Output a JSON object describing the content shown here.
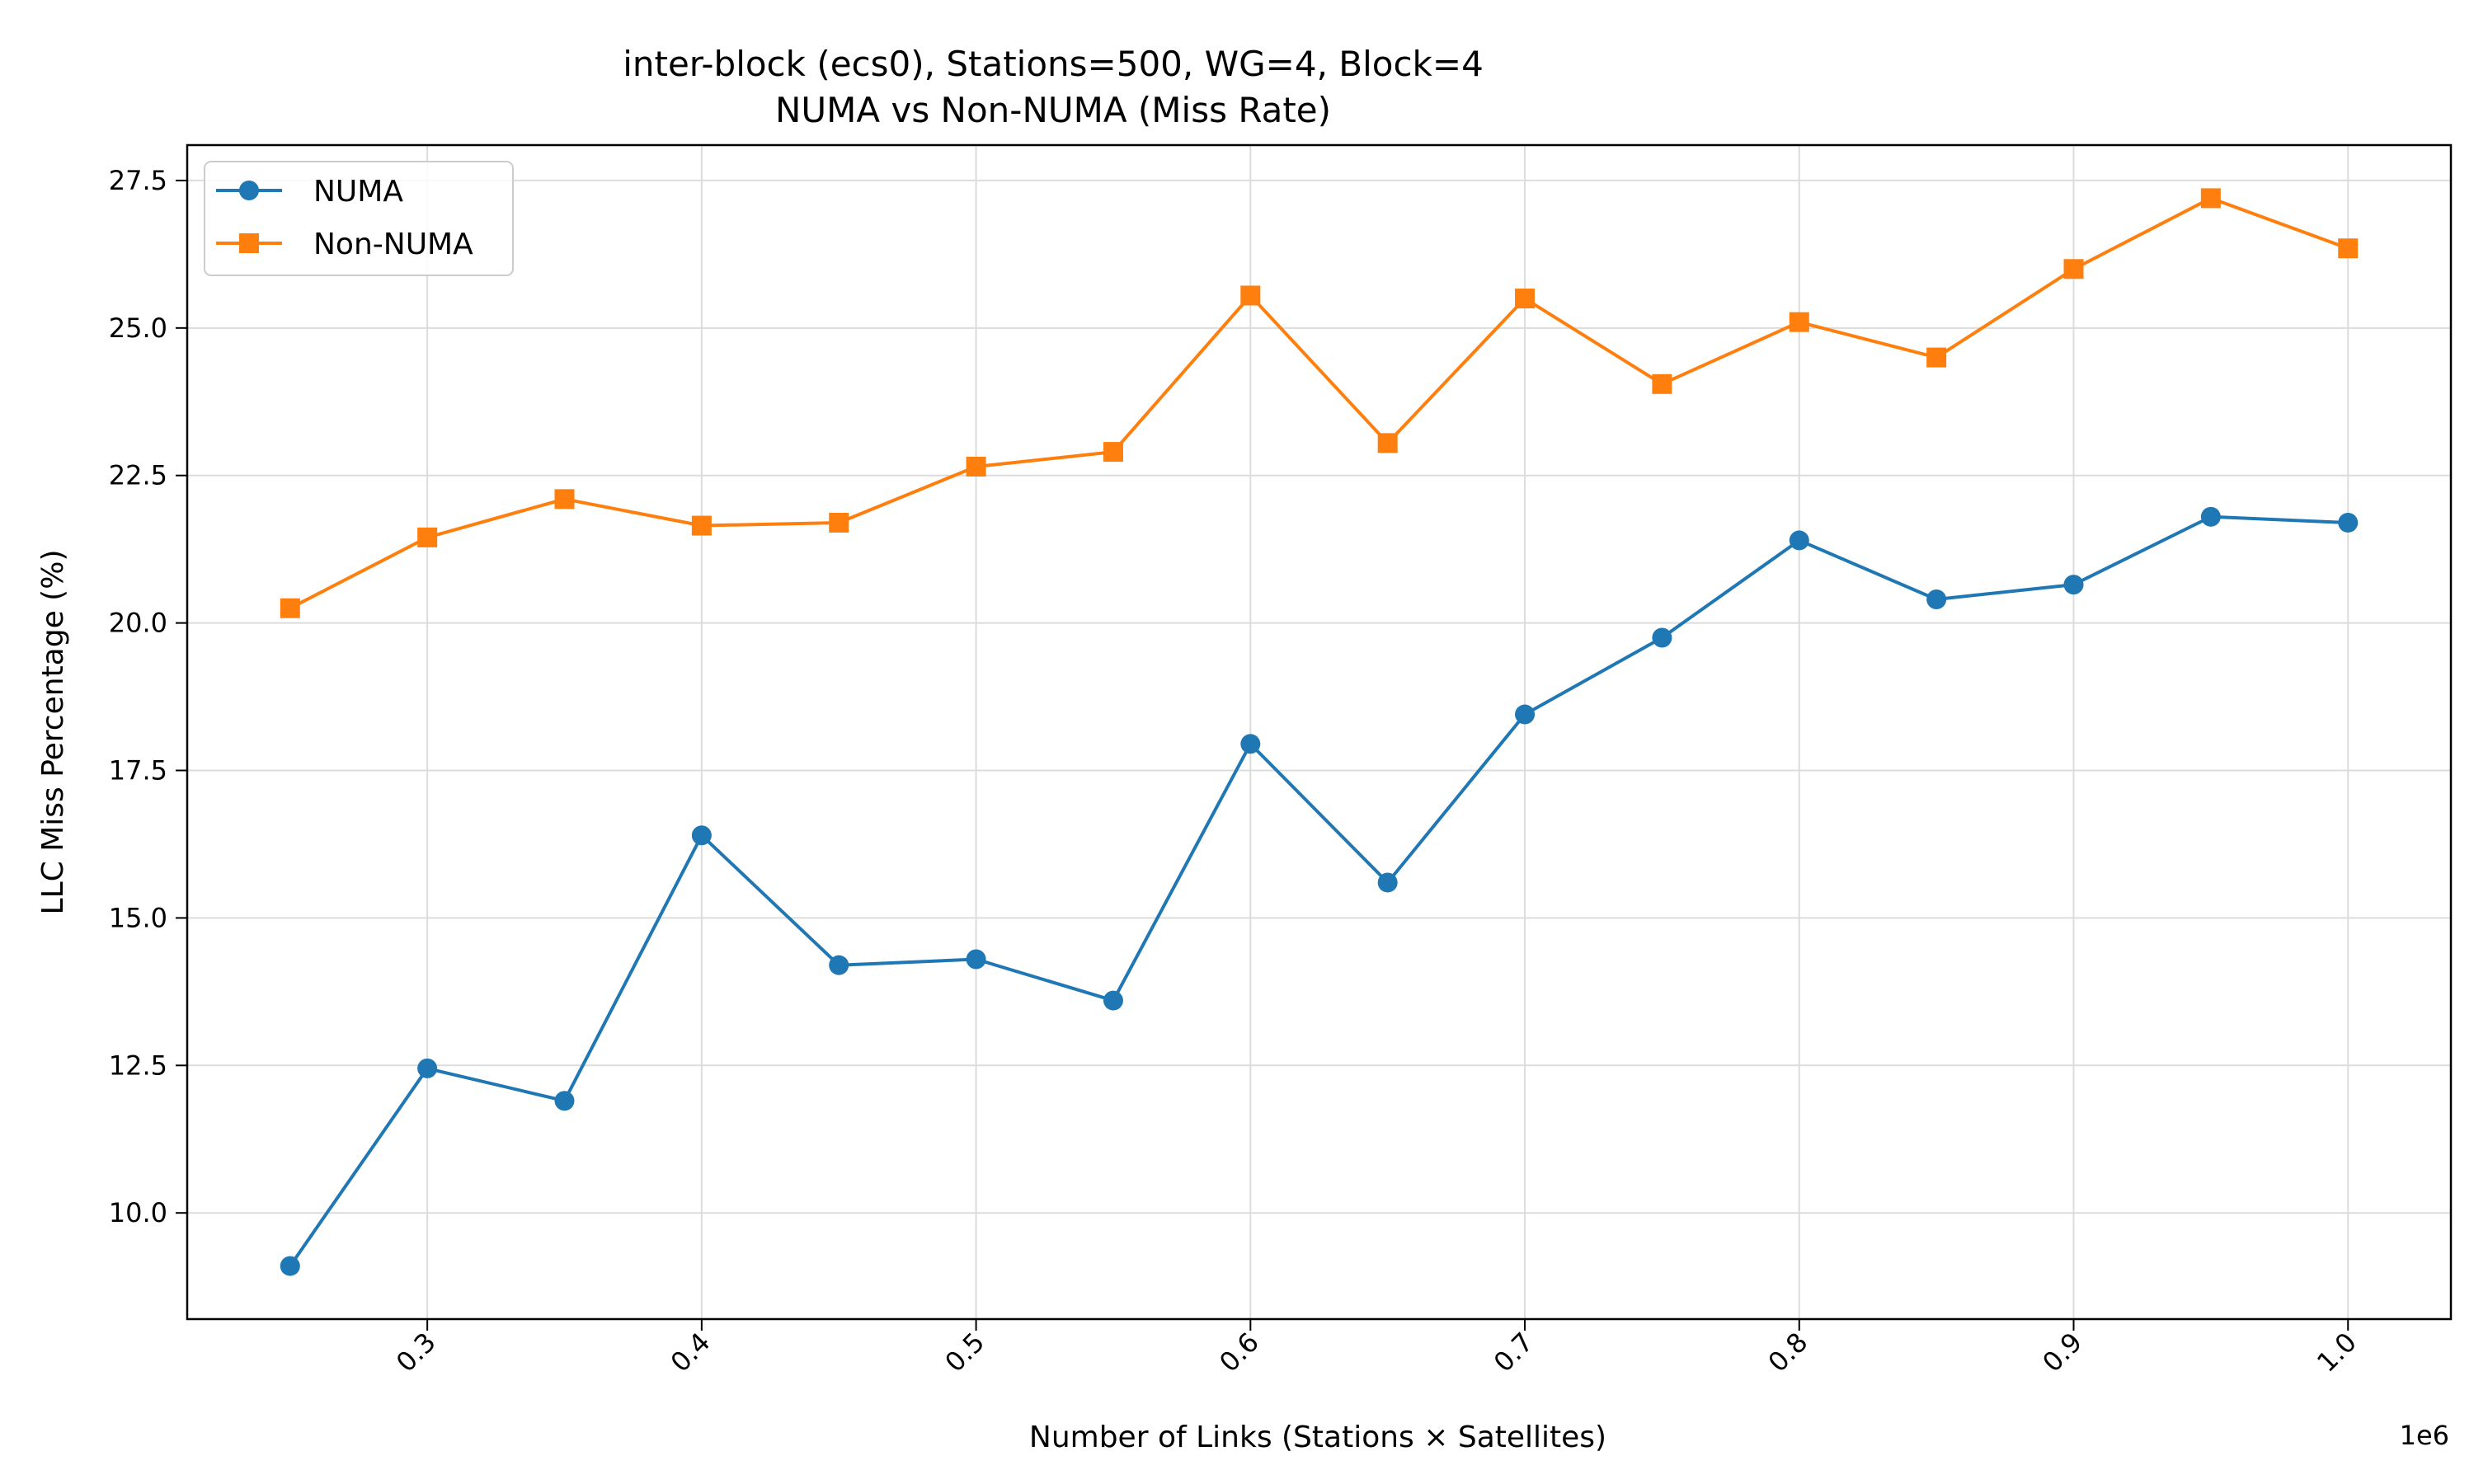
{
  "chart_data": {
    "type": "line",
    "title": "inter-block (ecs0), Stations=500, WG=4, Block=4",
    "subtitle": "NUMA vs Non-NUMA (Miss Rate)",
    "xlabel": "Number of Links (Stations × Satellites)",
    "ylabel": "LLC Miss Percentage (%)",
    "x_offset_label": "1e6",
    "x": [
      0.25,
      0.3,
      0.35,
      0.4,
      0.45,
      0.5,
      0.55,
      0.6,
      0.65,
      0.7,
      0.75,
      0.8,
      0.85,
      0.9,
      0.95,
      1.0
    ],
    "xlim": [
      0.2125,
      1.0375
    ],
    "ylim": [
      8.2,
      28.1
    ],
    "xticks": [
      0.3,
      0.4,
      0.5,
      0.6,
      0.7,
      0.8,
      0.9,
      1.0
    ],
    "xtick_labels": [
      "0.3",
      "0.4",
      "0.5",
      "0.6",
      "0.7",
      "0.8",
      "0.9",
      "1.0"
    ],
    "yticks": [
      10.0,
      12.5,
      15.0,
      17.5,
      20.0,
      22.5,
      25.0,
      27.5
    ],
    "ytick_labels": [
      "10.0",
      "12.5",
      "15.0",
      "17.5",
      "20.0",
      "22.5",
      "25.0",
      "27.5"
    ],
    "grid": true,
    "legend_position": "top-left",
    "series": [
      {
        "name": "NUMA",
        "color": "#1f77b4",
        "marker": "circle",
        "values": [
          9.1,
          12.45,
          11.9,
          16.4,
          14.2,
          14.3,
          13.6,
          17.95,
          15.6,
          18.45,
          19.75,
          21.4,
          20.4,
          20.65,
          21.8,
          21.7
        ]
      },
      {
        "name": "Non-NUMA",
        "color": "#ff7f0e",
        "marker": "square",
        "values": [
          20.25,
          21.45,
          22.1,
          21.65,
          21.7,
          22.65,
          22.9,
          25.55,
          23.05,
          25.5,
          24.05,
          25.1,
          24.5,
          26.0,
          27.2,
          26.35
        ]
      }
    ]
  }
}
